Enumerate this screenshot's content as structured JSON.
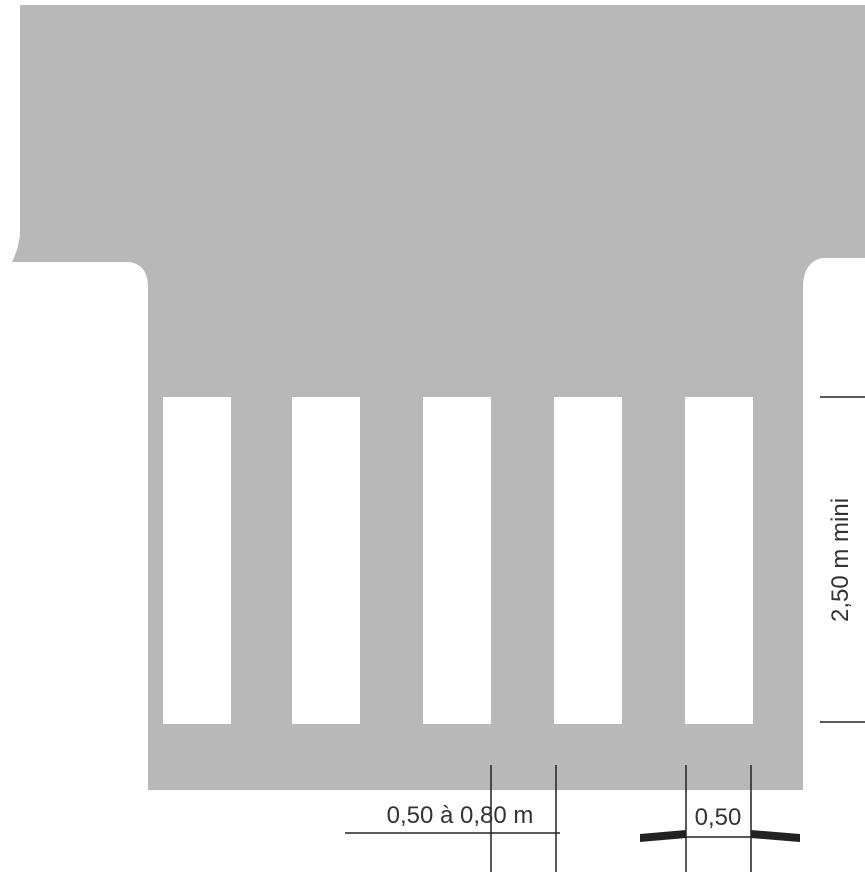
{
  "diagram": {
    "road_color": "#b8b8b8",
    "stripe_color": "#ffffff",
    "line_color": "#222222",
    "stripe_count": 5,
    "labels": {
      "stripe_length": "2,50 m mini",
      "gap_width": "0,50 à 0,80 m",
      "stripe_width": "0,50"
    }
  }
}
